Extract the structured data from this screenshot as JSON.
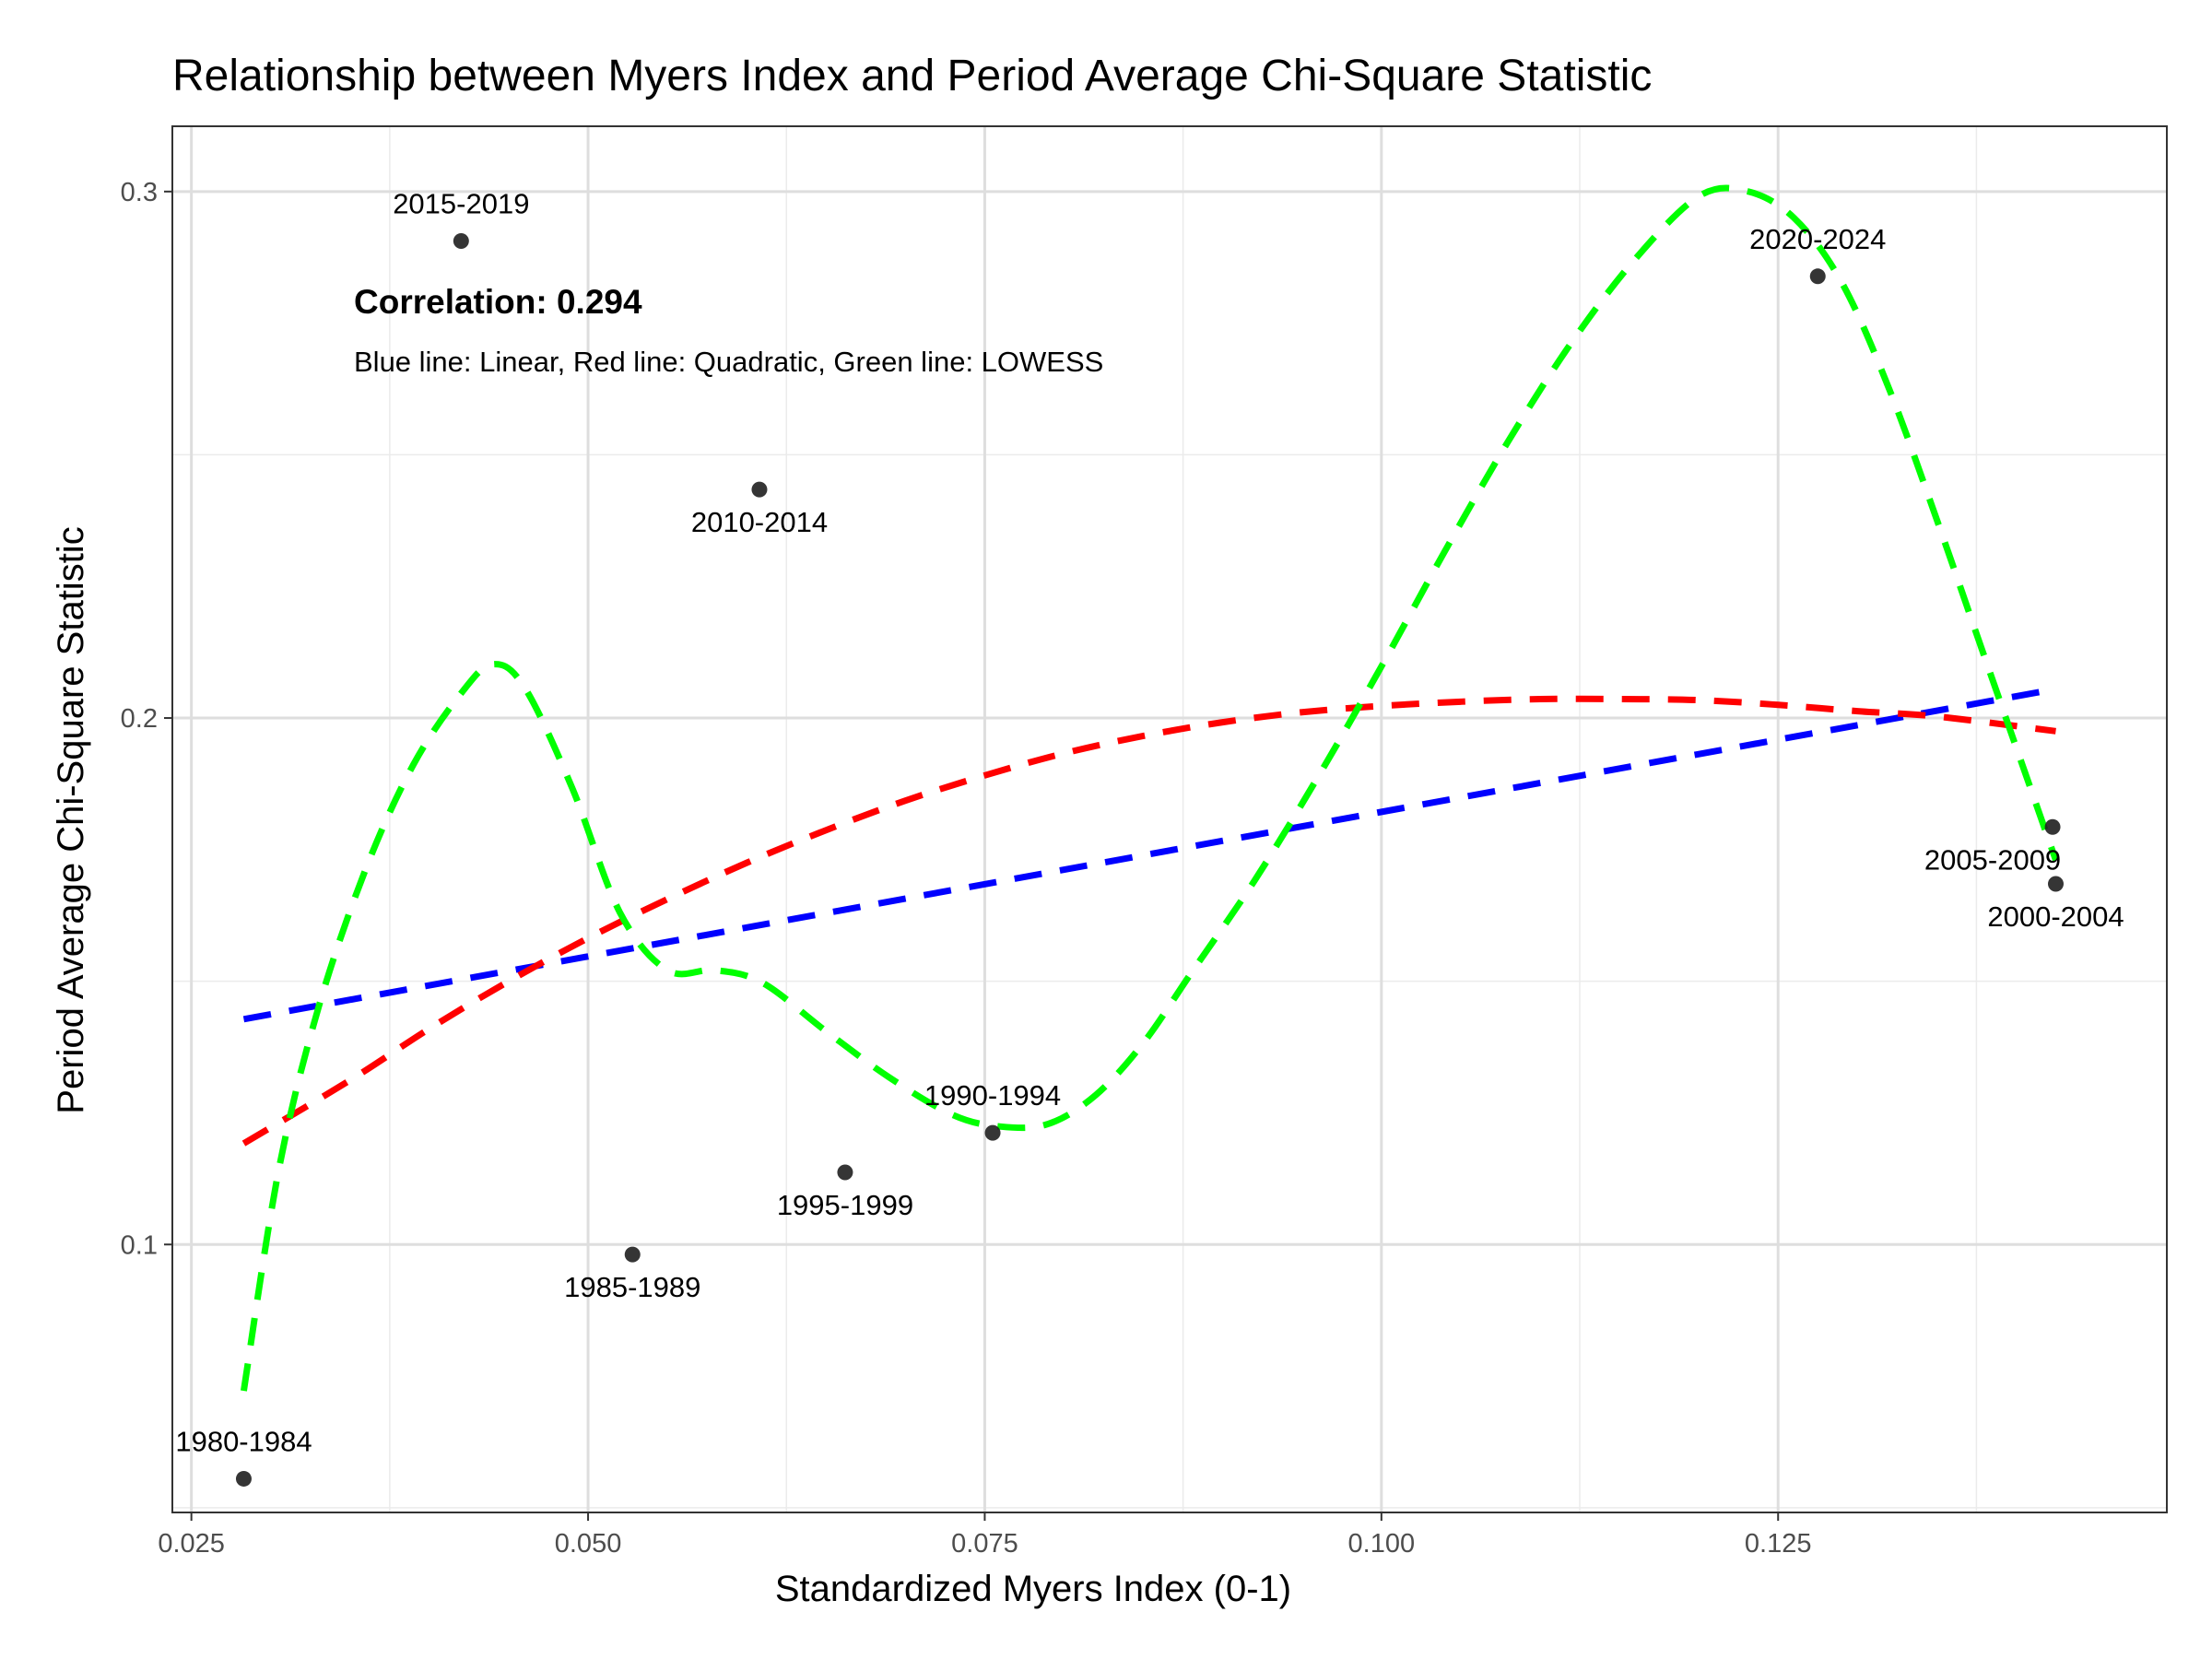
{
  "chart_data": {
    "type": "scatter",
    "title": "Relationship between Myers Index and Period Average Chi-Square Statistic",
    "xlabel": "Standardized Myers Index (0-1)",
    "ylabel": "Period Average Chi-Square Statistic",
    "xlim": [
      0.0238,
      0.1495
    ],
    "ylim": [
      0.0491,
      0.3124
    ],
    "x_ticks": [
      0.025,
      0.05,
      0.075,
      0.1,
      0.125
    ],
    "x_tick_labels": [
      "0.025",
      "0.050",
      "0.075",
      "0.100",
      "0.125"
    ],
    "y_ticks": [
      0.1,
      0.2,
      0.3
    ],
    "y_tick_labels": [
      "0.1",
      "0.2",
      "0.3"
    ],
    "grid": true,
    "points": [
      {
        "label": "1980-1984",
        "x": 0.0283,
        "y": 0.0555
      },
      {
        "label": "1985-1989",
        "x": 0.0528,
        "y": 0.0981
      },
      {
        "label": "1990-1994",
        "x": 0.0755,
        "y": 0.1212
      },
      {
        "label": "1995-1999",
        "x": 0.0662,
        "y": 0.1137
      },
      {
        "label": "2000-2004",
        "x": 0.1425,
        "y": 0.1685
      },
      {
        "label": "2005-2009",
        "x": 0.1423,
        "y": 0.1793
      },
      {
        "label": "2010-2014",
        "x": 0.0608,
        "y": 0.2434
      },
      {
        "label": "2015-2019",
        "x": 0.042,
        "y": 0.2906
      },
      {
        "label": "2020-2024",
        "x": 0.1275,
        "y": 0.2839
      }
    ],
    "series": [
      {
        "color": "#0000ff",
        "points": [
          [
            0.0283,
            0.1428
          ],
          [
            0.1425,
            0.2055
          ]
        ]
      },
      {
        "color": "#ff0000",
        "points": [
          [
            0.0283,
            0.1192
          ],
          [
            0.035,
            0.1312
          ],
          [
            0.04,
            0.141
          ],
          [
            0.045,
            0.15
          ],
          [
            0.05,
            0.1582
          ],
          [
            0.055,
            0.1656
          ],
          [
            0.06,
            0.1725
          ],
          [
            0.065,
            0.1787
          ],
          [
            0.07,
            0.1843
          ],
          [
            0.075,
            0.1891
          ],
          [
            0.08,
            0.1933
          ],
          [
            0.085,
            0.1966
          ],
          [
            0.09,
            0.1992
          ],
          [
            0.095,
            0.2011
          ],
          [
            0.1,
            0.2023
          ],
          [
            0.105,
            0.2031
          ],
          [
            0.11,
            0.2036
          ],
          [
            0.115,
            0.2036
          ],
          [
            0.12,
            0.2034
          ],
          [
            0.125,
            0.2025
          ],
          [
            0.13,
            0.2013
          ],
          [
            0.135,
            0.2003
          ],
          [
            0.1425,
            0.1975
          ]
        ]
      },
      {
        "color": "#00ff00",
        "points": [
          [
            0.0283,
            0.0722
          ],
          [
            0.0305,
            0.1141
          ],
          [
            0.033,
            0.1449
          ],
          [
            0.036,
            0.1714
          ],
          [
            0.039,
            0.1912
          ],
          [
            0.042,
            0.2047
          ],
          [
            0.044,
            0.2102
          ],
          [
            0.046,
            0.2058
          ],
          [
            0.049,
            0.1867
          ],
          [
            0.052,
            0.1631
          ],
          [
            0.055,
            0.1521
          ],
          [
            0.058,
            0.1521
          ],
          [
            0.061,
            0.1497
          ],
          [
            0.065,
            0.1405
          ],
          [
            0.069,
            0.1317
          ],
          [
            0.073,
            0.1246
          ],
          [
            0.076,
            0.1224
          ],
          [
            0.079,
            0.1229
          ],
          [
            0.082,
            0.1284
          ],
          [
            0.085,
            0.1383
          ],
          [
            0.088,
            0.1515
          ],
          [
            0.092,
            0.1691
          ],
          [
            0.096,
            0.1888
          ],
          [
            0.1,
            0.2098
          ],
          [
            0.104,
            0.2317
          ],
          [
            0.108,
            0.2526
          ],
          [
            0.112,
            0.2714
          ],
          [
            0.116,
            0.2872
          ],
          [
            0.12,
            0.2991
          ],
          [
            0.123,
            0.3001
          ],
          [
            0.126,
            0.295
          ],
          [
            0.129,
            0.2828
          ],
          [
            0.132,
            0.2625
          ],
          [
            0.135,
            0.2377
          ],
          [
            0.138,
            0.2117
          ],
          [
            0.1425,
            0.173
          ]
        ]
      }
    ],
    "annotation": {
      "headline": "Correlation: 0.294",
      "subtext": "Blue line: Linear, Red line: Quadratic, Green line: LOWESS"
    }
  }
}
